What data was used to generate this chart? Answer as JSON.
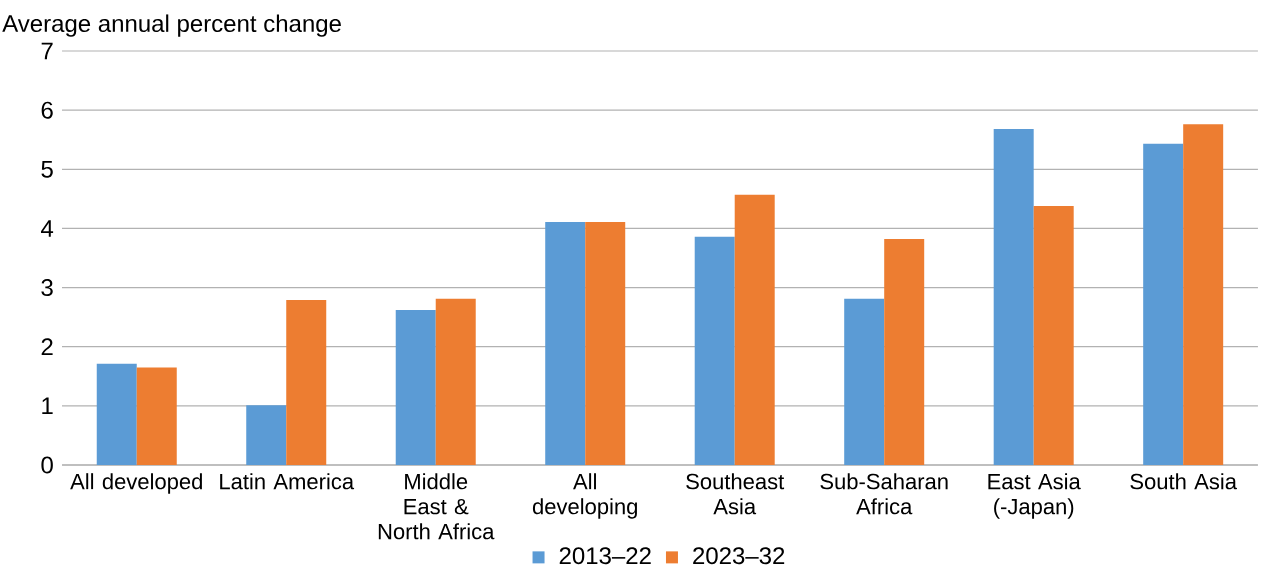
{
  "chart_data": {
    "type": "bar",
    "ylabel": "Average annual  percent change",
    "categories": [
      "All developed",
      "Latin America",
      "Middle East & North Africa",
      "All developing",
      "Southeast Asia",
      "Sub-Saharan Africa",
      "East Asia (-Japan)",
      "South Asia"
    ],
    "series": [
      {
        "name": "2013–22",
        "color": "#5b9bd5",
        "values": [
          1.71,
          1.01,
          2.62,
          4.11,
          3.86,
          2.81,
          5.68,
          5.43
        ]
      },
      {
        "name": "2023–32",
        "color": "#ed7d31",
        "values": [
          1.65,
          2.79,
          2.81,
          4.11,
          4.57,
          3.82,
          4.38,
          5.76
        ]
      }
    ],
    "ylim": [
      0,
      7
    ],
    "yticks": [
      0,
      1,
      2,
      3,
      4,
      5,
      6,
      7
    ],
    "grid": "y",
    "legend": "bottom"
  }
}
